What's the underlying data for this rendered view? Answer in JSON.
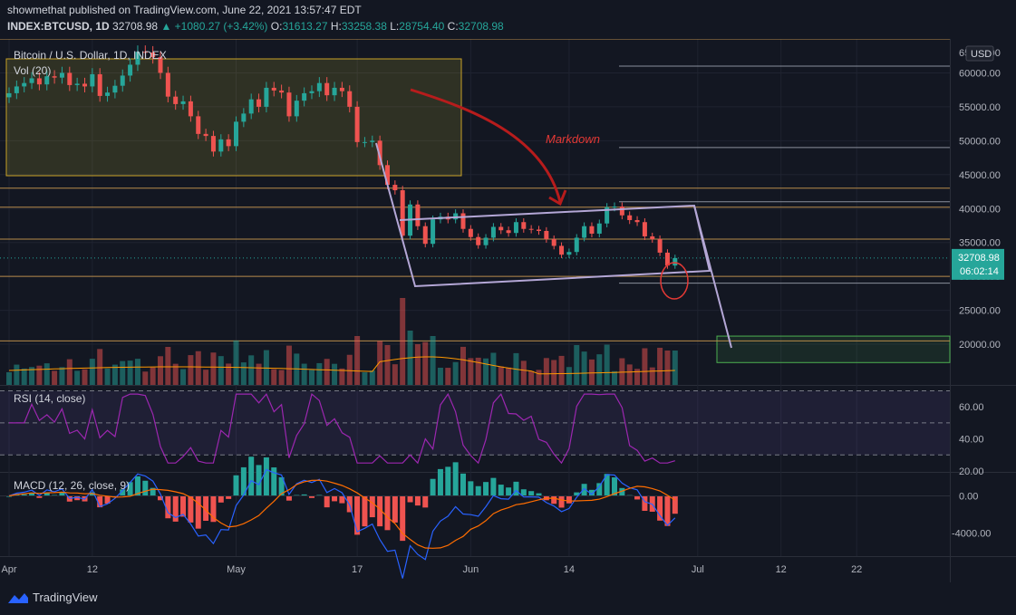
{
  "header": {
    "published": "showmethat published on TradingView.com, June 22, 2021 13:57:47 EDT",
    "symbol": "INDEX:BTCUSD, 1D",
    "price": "32708.98",
    "change": "+1080.27 (+3.42%)",
    "o_label": "O:",
    "o": "31613.27",
    "h_label": "H:",
    "h": "33258.38",
    "l_label": "L:",
    "l": "28754.40",
    "c_label": "C:",
    "c": "32708.98"
  },
  "panes": {
    "main_title": "Bitcoin / U.S. Dollar, 1D, INDEX",
    "vol_label": "Vol (20)",
    "rsi_label": "RSI (14, close)",
    "macd_label": "MACD (12, 26, close, 9)",
    "currency": "USD",
    "annotation": "Markdown",
    "last_price": "32708.98",
    "countdown": "06:02:14"
  },
  "brand": "TradingView",
  "colors": {
    "up": "#26a69a",
    "down": "#ef5350",
    "background": "#131722",
    "level_line": "#b78b4a",
    "channel": "#b4a7d6",
    "rsi": "#9c27b0",
    "macd": "#2962ff",
    "signal": "#ff6d00",
    "arrow": "#b71c1c"
  },
  "chart_data": {
    "type": "candlestick",
    "title": "Bitcoin / U.S. Dollar, 1D, INDEX",
    "price_axis": {
      "range": [
        14000,
        65000
      ],
      "ticks": [
        20000,
        25000,
        30000,
        35000,
        40000,
        45000,
        50000,
        55000,
        60000
      ],
      "tick_labels": [
        "20000.00",
        "25000.00",
        "30000.00",
        "35000.00",
        "40000.00",
        "45000.00",
        "50000.00",
        "55000.00",
        "60000.00"
      ],
      "partial_top_label": "65000.00"
    },
    "time_axis": {
      "labels": [
        "Apr",
        "12",
        "May",
        "17",
        "Jun",
        "14",
        "Jul",
        "12",
        "22"
      ],
      "label_days": [
        0,
        11,
        30,
        46,
        61,
        74,
        91,
        102,
        112
      ]
    },
    "candles_close": [
      57000,
      58000,
      58500,
      59200,
      58300,
      59500,
      59300,
      60000,
      58200,
      58400,
      58000,
      59800,
      56600,
      57100,
      58100,
      59600,
      61200,
      63100,
      63000,
      62300,
      60000,
      56500,
      55400,
      55800,
      53600,
      51000,
      50700,
      48400,
      50200,
      49200,
      52800,
      54000,
      56100,
      55000,
      57800,
      57400,
      57100,
      53600,
      55900,
      57000,
      57300,
      58500,
      56700,
      57800,
      57300,
      55000,
      49800,
      49800,
      50000,
      46400,
      43500,
      42700,
      36000,
      40600,
      37400,
      34800,
      38400,
      38800,
      38400,
      39300,
      37000,
      35800,
      34600,
      35700,
      37300,
      36800,
      36400,
      38000,
      37000,
      36900,
      36700,
      35500,
      34500,
      33200,
      33600,
      35700,
      37400,
      36300,
      37800,
      40200,
      40300,
      39000,
      38300,
      38000,
      35900,
      35500,
      33500,
      31600,
      32708
    ],
    "key_levels": [
      65000,
      43000,
      40200,
      35500,
      30000,
      20500
    ],
    "annotation_lines": [
      61000,
      49000,
      41000,
      29000
    ],
    "target_zone": [
      17300,
      21200
    ],
    "volume": {
      "label": "Vol (20)"
    },
    "rsi": {
      "label": "RSI (14, close)",
      "levels": [
        70,
        50,
        30
      ],
      "tick_labels": [
        "60.00",
        "40.00",
        "20.00"
      ],
      "range": [
        20,
        72
      ]
    },
    "macd": {
      "label": "MACD (12, 26, close, 9)",
      "tick_labels": [
        "0.00",
        "-4000.00"
      ],
      "range": [
        -6300,
        2300
      ]
    }
  }
}
